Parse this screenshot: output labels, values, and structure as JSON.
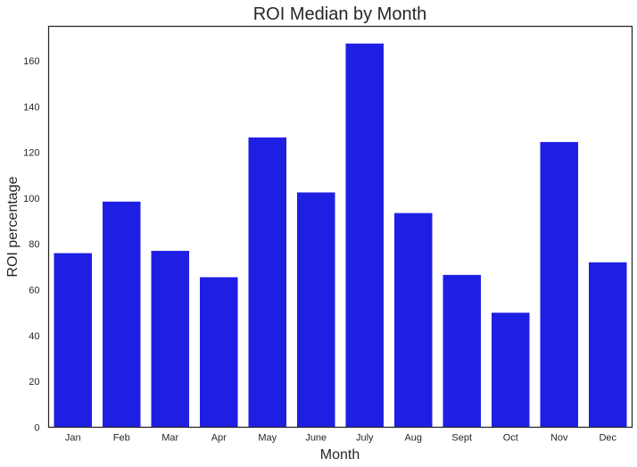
{
  "chart_data": {
    "type": "bar",
    "title": "ROI Median by Month",
    "xlabel": "Month",
    "ylabel": "ROI percentage",
    "categories": [
      "Jan",
      "Feb",
      "Mar",
      "Apr",
      "May",
      "June",
      "July",
      "Aug",
      "Sept",
      "Oct",
      "Nov",
      "Dec"
    ],
    "values": [
      76,
      98.5,
      77,
      65.5,
      126.5,
      102.5,
      167.5,
      93.5,
      66.5,
      50,
      124.5,
      72
    ],
    "ylim": [
      0,
      175
    ],
    "yticks": [
      0,
      20,
      40,
      60,
      80,
      100,
      120,
      140,
      160
    ],
    "grid": false,
    "legend": "none",
    "bar_color": "#1f1fe4",
    "axes_color": "#262626",
    "background": "#ffffff"
  }
}
